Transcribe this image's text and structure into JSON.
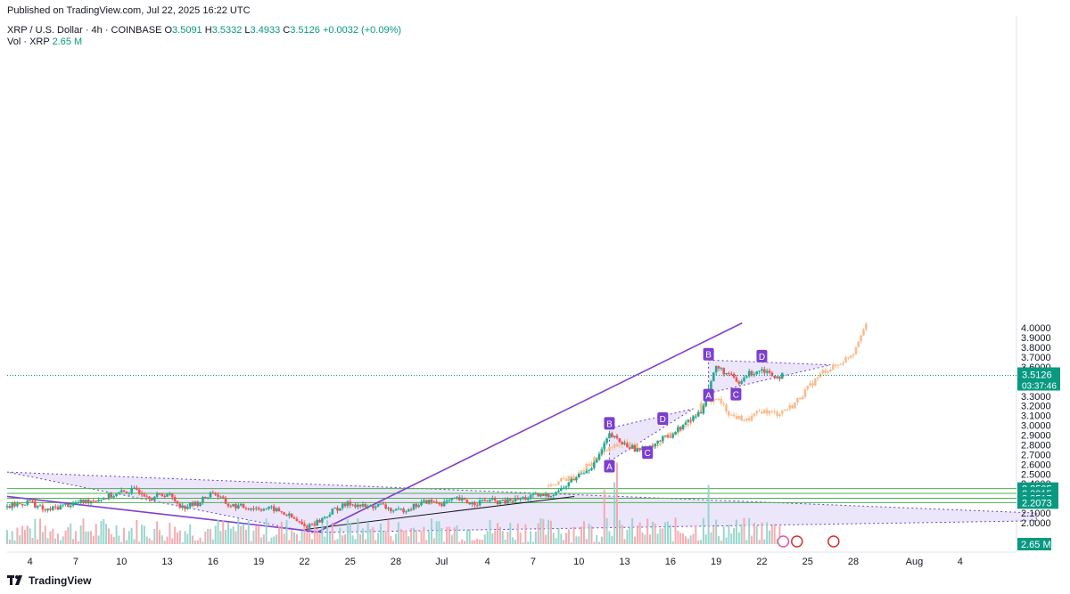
{
  "header": {
    "published": "Published on TradingView.com, Jul 22, 2025 16:22 UTC",
    "symbol": "XRP / U.S. Dollar · 4h · COINBASE",
    "o_label": "O",
    "o_val": "3.5091",
    "h_label": "H",
    "h_val": "3.5332",
    "l_label": "L",
    "l_val": "3.4933",
    "c_label": "C",
    "c_val": "3.5126",
    "change": "+0.0032 (+0.09%)",
    "vol_label": "Vol · XRP",
    "vol_val": "2.65 M"
  },
  "footer": {
    "brand": "TradingView",
    "logo_icon": "tradingview-logo-icon"
  },
  "colors": {
    "up": "#089981",
    "down": "#f23645",
    "up_candle": "#22ab94",
    "down_candle": "#ef5350",
    "projection": "#f7b785",
    "pattern_fill": "#e6defa",
    "pattern_line": "#6a3fc9",
    "hline": "#4caf50",
    "trendline": "#7e3fcf",
    "last_price": "#089981"
  },
  "chart_data": {
    "type": "candlestick",
    "title": "XRP / U.S. Dollar · 4h · COINBASE",
    "y_axis": {
      "min": 1.9,
      "max": 4.05,
      "ticks": [
        "4.0000",
        "3.9000",
        "3.8000",
        "3.7000",
        "3.6000",
        "3.5000",
        "3.4000",
        "3.3000",
        "3.2000",
        "3.1000",
        "3.0000",
        "2.9000",
        "2.8000",
        "2.7000",
        "2.6000",
        "2.5000",
        "2.4000",
        "2.3000",
        "2.2000",
        "2.1000",
        "2.0000"
      ]
    },
    "x_axis": {
      "start_day": 2.5,
      "end_day": 53.5,
      "tick_labels": [
        {
          "label": "4",
          "day": 4
        },
        {
          "label": "7",
          "day": 7
        },
        {
          "label": "10",
          "day": 10
        },
        {
          "label": "13",
          "day": 13
        },
        {
          "label": "16",
          "day": 16
        },
        {
          "label": "19",
          "day": 19
        },
        {
          "label": "22",
          "day": 22
        },
        {
          "label": "25",
          "day": 25
        },
        {
          "label": "28",
          "day": 28
        },
        {
          "label": "Jul",
          "day": 31
        },
        {
          "label": "4",
          "day": 34
        },
        {
          "label": "7",
          "day": 37
        },
        {
          "label": "10",
          "day": 40
        },
        {
          "label": "13",
          "day": 43
        },
        {
          "label": "16",
          "day": 46
        },
        {
          "label": "19",
          "day": 49
        },
        {
          "label": "22",
          "day": 52
        },
        {
          "label": "25",
          "day": 55
        },
        {
          "label": "28",
          "day": 58
        },
        {
          "label": "Aug",
          "day": 62
        },
        {
          "label": "4",
          "day": 65
        }
      ]
    },
    "price_series": [
      {
        "day": 2.5,
        "close": 2.16
      },
      {
        "day": 4,
        "close": 2.22
      },
      {
        "day": 5,
        "close": 2.12
      },
      {
        "day": 6,
        "close": 2.17
      },
      {
        "day": 7,
        "close": 2.2
      },
      {
        "day": 9,
        "close": 2.26
      },
      {
        "day": 10,
        "close": 2.31
      },
      {
        "day": 11,
        "close": 2.34
      },
      {
        "day": 12,
        "close": 2.26
      },
      {
        "day": 13,
        "close": 2.3
      },
      {
        "day": 14,
        "close": 2.16
      },
      {
        "day": 15,
        "close": 2.2
      },
      {
        "day": 16,
        "close": 2.32
      },
      {
        "day": 17,
        "close": 2.18
      },
      {
        "day": 18,
        "close": 2.16
      },
      {
        "day": 19,
        "close": 2.15
      },
      {
        "day": 20,
        "close": 2.14
      },
      {
        "day": 21,
        "close": 2.07
      },
      {
        "day": 22,
        "close": 1.96
      },
      {
        "day": 23,
        "close": 2.02
      },
      {
        "day": 24,
        "close": 2.14
      },
      {
        "day": 25,
        "close": 2.2
      },
      {
        "day": 26,
        "close": 2.16
      },
      {
        "day": 27,
        "close": 2.18
      },
      {
        "day": 28,
        "close": 2.11
      },
      {
        "day": 29,
        "close": 2.16
      },
      {
        "day": 30,
        "close": 2.22
      },
      {
        "day": 31,
        "close": 2.2
      },
      {
        "day": 32,
        "close": 2.24
      },
      {
        "day": 33,
        "close": 2.2
      },
      {
        "day": 34,
        "close": 2.23
      },
      {
        "day": 35,
        "close": 2.21
      },
      {
        "day": 36,
        "close": 2.24
      },
      {
        "day": 37,
        "close": 2.27
      },
      {
        "day": 38,
        "close": 2.28
      },
      {
        "day": 39,
        "close": 2.36
      },
      {
        "day": 40,
        "close": 2.49
      },
      {
        "day": 41,
        "close": 2.6
      },
      {
        "day": 42,
        "close": 2.9
      },
      {
        "day": 43,
        "close": 2.8
      },
      {
        "day": 44,
        "close": 2.74
      },
      {
        "day": 45,
        "close": 2.82
      },
      {
        "day": 46,
        "close": 2.9
      },
      {
        "day": 47,
        "close": 3.02
      },
      {
        "day": 48,
        "close": 3.14
      },
      {
        "day": 48.5,
        "close": 3.38
      },
      {
        "day": 49,
        "close": 3.6
      },
      {
        "day": 50,
        "close": 3.5
      },
      {
        "day": 50.5,
        "close": 3.42
      },
      {
        "day": 51,
        "close": 3.52
      },
      {
        "day": 52,
        "close": 3.58
      },
      {
        "day": 53,
        "close": 3.5
      },
      {
        "day": 53.5,
        "close": 3.5126
      }
    ],
    "projection_series": [
      {
        "day": 38,
        "close": 2.38
      },
      {
        "day": 40,
        "close": 2.5
      },
      {
        "day": 41,
        "close": 2.65
      },
      {
        "day": 42,
        "close": 2.76
      },
      {
        "day": 43,
        "close": 2.82
      },
      {
        "day": 44,
        "close": 2.76
      },
      {
        "day": 45,
        "close": 2.8
      },
      {
        "day": 46,
        "close": 2.9
      },
      {
        "day": 47,
        "close": 3.0
      },
      {
        "day": 48,
        "close": 3.2
      },
      {
        "day": 49,
        "close": 3.28
      },
      {
        "day": 50,
        "close": 3.1
      },
      {
        "day": 51,
        "close": 3.05
      },
      {
        "day": 52,
        "close": 3.15
      },
      {
        "day": 53,
        "close": 3.12
      },
      {
        "day": 54,
        "close": 3.2
      },
      {
        "day": 55,
        "close": 3.38
      },
      {
        "day": 56,
        "close": 3.55
      },
      {
        "day": 57,
        "close": 3.62
      },
      {
        "day": 58,
        "close": 3.75
      },
      {
        "day": 58.5,
        "close": 3.95
      },
      {
        "day": 59,
        "close": 4.05
      }
    ],
    "last_price": {
      "value": 3.5126,
      "label": "3.5126",
      "countdown": "03:37:46"
    },
    "horizontal_levels": [
      {
        "value": 2.3505,
        "label": "2.3505"
      },
      {
        "value": 2.3015,
        "label": "2.3015"
      },
      {
        "value": 2.2517,
        "label": "2.2517"
      },
      {
        "value": 2.2073,
        "label": "2.2073"
      }
    ],
    "volume": {
      "last_label": "2.65 M"
    },
    "patterns": [
      {
        "name": "triangle-1",
        "points": [
          {
            "day": 2.5,
            "price": 2.52
          },
          {
            "day": 70,
            "price": 2.1
          },
          {
            "day": 70,
            "price": 2.02
          },
          {
            "day": 22.5,
            "price": 1.9
          }
        ]
      },
      {
        "name": "flag-1",
        "points": [
          {
            "day": 42,
            "price": 2.97
          },
          {
            "day": 47.5,
            "price": 3.17
          },
          {
            "day": 42,
            "price": 2.63
          }
        ]
      },
      {
        "name": "flag-2",
        "points": [
          {
            "day": 48.5,
            "price": 3.67
          },
          {
            "day": 56.5,
            "price": 3.62
          },
          {
            "day": 48.5,
            "price": 3.33
          }
        ]
      }
    ],
    "abcd_labels": [
      {
        "label": "A",
        "day": 42,
        "price": 2.58
      },
      {
        "label": "B",
        "day": 42,
        "price": 3.02
      },
      {
        "label": "C",
        "day": 44.5,
        "price": 2.72
      },
      {
        "label": "D",
        "day": 45.5,
        "price": 3.07
      },
      {
        "label": "A",
        "day": 48.5,
        "price": 3.31
      },
      {
        "label": "B",
        "day": 48.5,
        "price": 3.73
      },
      {
        "label": "C",
        "day": 50.3,
        "price": 3.32
      },
      {
        "label": "D",
        "day": 52,
        "price": 3.71
      }
    ]
  }
}
